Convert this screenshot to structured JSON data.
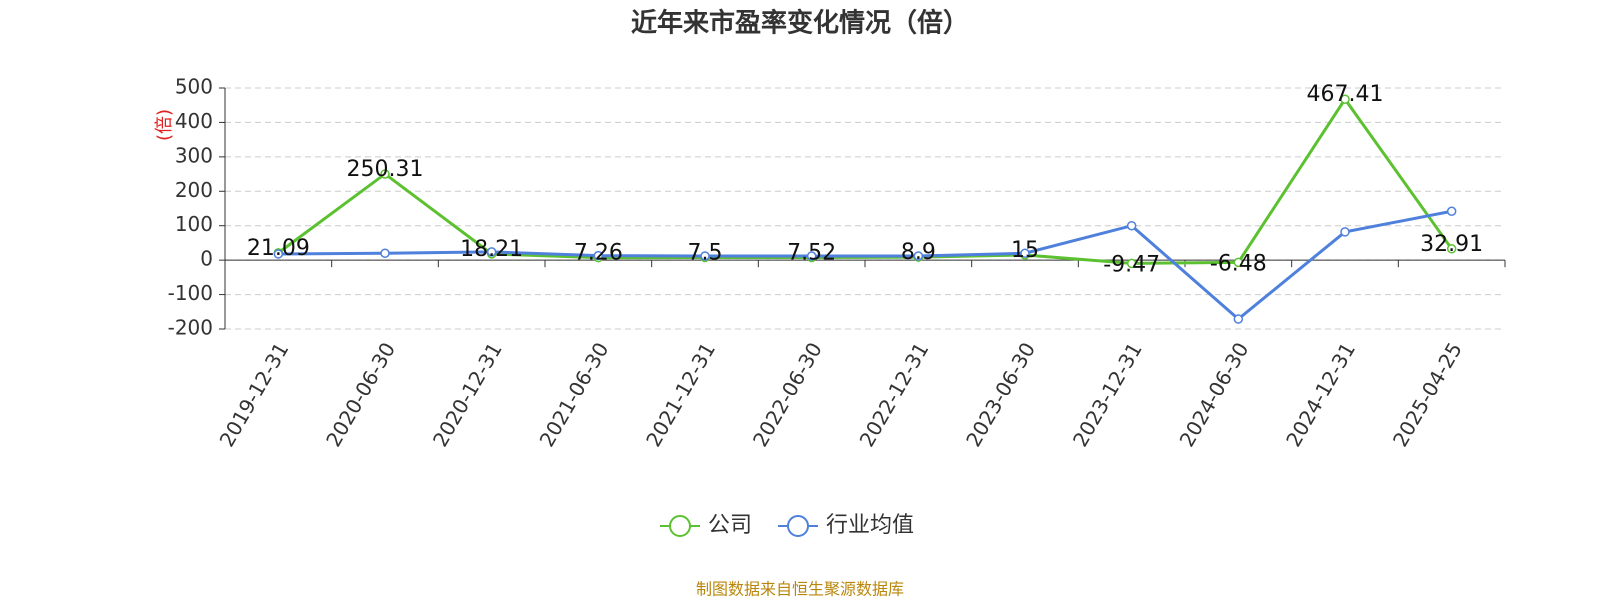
{
  "chart_data": {
    "type": "line",
    "title": "近年来市盈率变化情况（倍）",
    "y_label": "(倍)",
    "categories": [
      "2019-12-31",
      "2020-06-30",
      "2020-12-31",
      "2021-06-30",
      "2021-12-31",
      "2022-06-30",
      "2022-12-31",
      "2023-06-30",
      "2023-12-31",
      "2024-06-30",
      "2024-12-31",
      "2025-04-25"
    ],
    "series": [
      {
        "name": "公司",
        "color": "#5cc130",
        "values": [
          21.09,
          250.31,
          18.21,
          7.26,
          7.5,
          7.52,
          8.9,
          15,
          -9.47,
          -6.48,
          467.41,
          32.91
        ],
        "show_labels": true
      },
      {
        "name": "行业均值",
        "color": "#4e80dc",
        "values": [
          18,
          20,
          24,
          13,
          12,
          12,
          12,
          20,
          100,
          -171,
          82,
          142
        ],
        "show_labels": false
      }
    ],
    "ylim": [
      -200,
      500
    ],
    "yticks": [
      -200,
      -100,
      0,
      100,
      200,
      300,
      400,
      500
    ],
    "grid": true,
    "source": "制图数据来自恒生聚源数据库"
  }
}
